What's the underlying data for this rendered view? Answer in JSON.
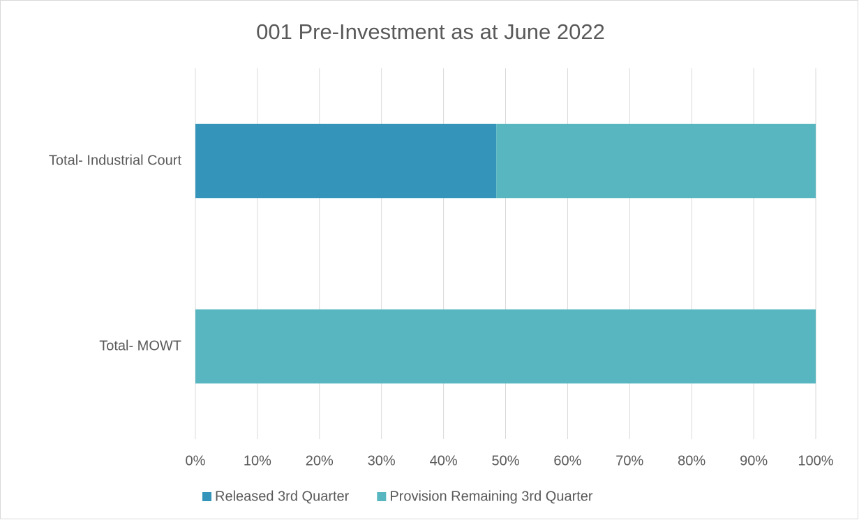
{
  "chart_data": {
    "type": "stacked_barh",
    "title": "001 Pre-Investment as at June 2022",
    "categories": [
      "Total- Industrial Court",
      "Total- MOWT"
    ],
    "series": [
      {
        "name": "Released 3rd Quarter",
        "color": "#3494ba",
        "values": [
          48.5,
          0
        ]
      },
      {
        "name": "Provision Remaining 3rd Quarter",
        "color": "#58b6c0",
        "values": [
          51.5,
          100
        ]
      }
    ],
    "xlim": [
      0,
      100
    ],
    "xticks": [
      {
        "value": 0,
        "label": "0%"
      },
      {
        "value": 10,
        "label": "10%"
      },
      {
        "value": 20,
        "label": "20%"
      },
      {
        "value": 30,
        "label": "30%"
      },
      {
        "value": 40,
        "label": "40%"
      },
      {
        "value": 50,
        "label": "50%"
      },
      {
        "value": 60,
        "label": "60%"
      },
      {
        "value": 70,
        "label": "70%"
      },
      {
        "value": 80,
        "label": "80%"
      },
      {
        "value": 90,
        "label": "90%"
      },
      {
        "value": 100,
        "label": "100%"
      }
    ],
    "grid": true,
    "legend": "bottom"
  }
}
